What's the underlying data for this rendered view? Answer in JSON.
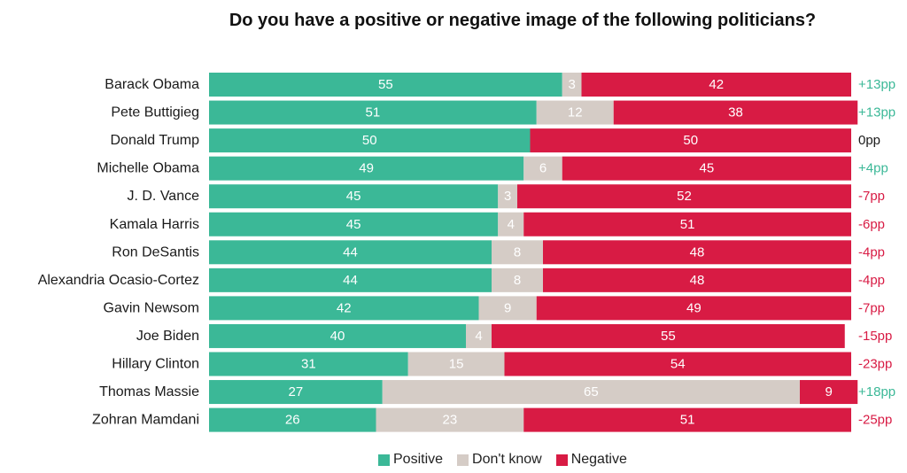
{
  "chart_data": {
    "type": "bar",
    "orientation": "horizontal",
    "stacked": true,
    "title": "Do you have a positive or negative image of the following politicians?",
    "categories": [
      "Barack Obama",
      "Pete Buttigieg",
      "Donald Trump",
      "Michelle Obama",
      "J. D. Vance",
      "Kamala Harris",
      "Ron DeSantis",
      "Alexandria Ocasio-Cortez",
      "Gavin Newsom",
      "Joe Biden",
      "Hillary Clinton",
      "Thomas Massie",
      "Zohran Mamdani"
    ],
    "series": [
      {
        "name": "Positive",
        "color": "#3bb897",
        "values": [
          55,
          51,
          50,
          49,
          45,
          45,
          44,
          44,
          42,
          40,
          31,
          27,
          26
        ]
      },
      {
        "name": "Don't know",
        "color": "#d5ccc6",
        "values": [
          3,
          12,
          0,
          6,
          3,
          4,
          8,
          8,
          9,
          4,
          15,
          65,
          23
        ]
      },
      {
        "name": "Negative",
        "color": "#d81b44",
        "values": [
          42,
          38,
          50,
          45,
          52,
          51,
          48,
          48,
          49,
          55,
          54,
          9,
          51
        ]
      }
    ],
    "net_labels": [
      "+13pp",
      "+13pp",
      "0pp",
      "+4pp",
      "-7pp",
      "-6pp",
      "-4pp",
      "-4pp",
      "-7pp",
      "-15pp",
      "-23pp",
      "+18pp",
      "-25pp"
    ],
    "xlim": [
      0,
      100
    ],
    "legend_position": "bottom-center",
    "grid": false
  },
  "colors": {
    "net_positive": "#3bb897",
    "net_zero": "#1a1a1a",
    "net_negative": "#d81b44"
  }
}
